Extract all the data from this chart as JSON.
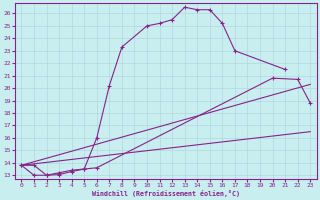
{
  "xlabel": "Windchill (Refroidissement éolien,°C)",
  "xlim": [
    -0.5,
    23.5
  ],
  "ylim": [
    12.7,
    26.8
  ],
  "xticks": [
    0,
    1,
    2,
    3,
    4,
    5,
    6,
    7,
    8,
    9,
    10,
    11,
    12,
    13,
    14,
    15,
    16,
    17,
    18,
    19,
    20,
    21,
    22,
    23
  ],
  "yticks": [
    13,
    14,
    15,
    16,
    17,
    18,
    19,
    20,
    21,
    22,
    23,
    24,
    25,
    26
  ],
  "background_color": "#c8eef0",
  "grid_color": "#b0d8dc",
  "line_color": "#882288",
  "s1x": [
    0,
    1,
    2,
    3,
    4,
    5,
    6,
    7,
    8,
    10,
    11,
    12,
    13,
    14,
    15,
    16,
    17,
    21
  ],
  "s1y": [
    13.8,
    13.8,
    13.0,
    13.05,
    13.3,
    13.5,
    16.0,
    20.2,
    23.3,
    25.0,
    25.2,
    25.5,
    26.5,
    26.3,
    26.3,
    25.2,
    23.0,
    21.5
  ],
  "s2x": [
    0,
    1,
    2,
    3,
    4,
    5,
    6,
    20,
    22,
    23
  ],
  "s2y": [
    13.8,
    13.0,
    13.0,
    13.2,
    13.4,
    13.5,
    13.6,
    20.8,
    20.7,
    18.8
  ],
  "s3x": [
    0,
    23
  ],
  "s3y": [
    13.8,
    20.3
  ],
  "s4x": [
    0,
    23
  ],
  "s4y": [
    13.8,
    16.5
  ]
}
